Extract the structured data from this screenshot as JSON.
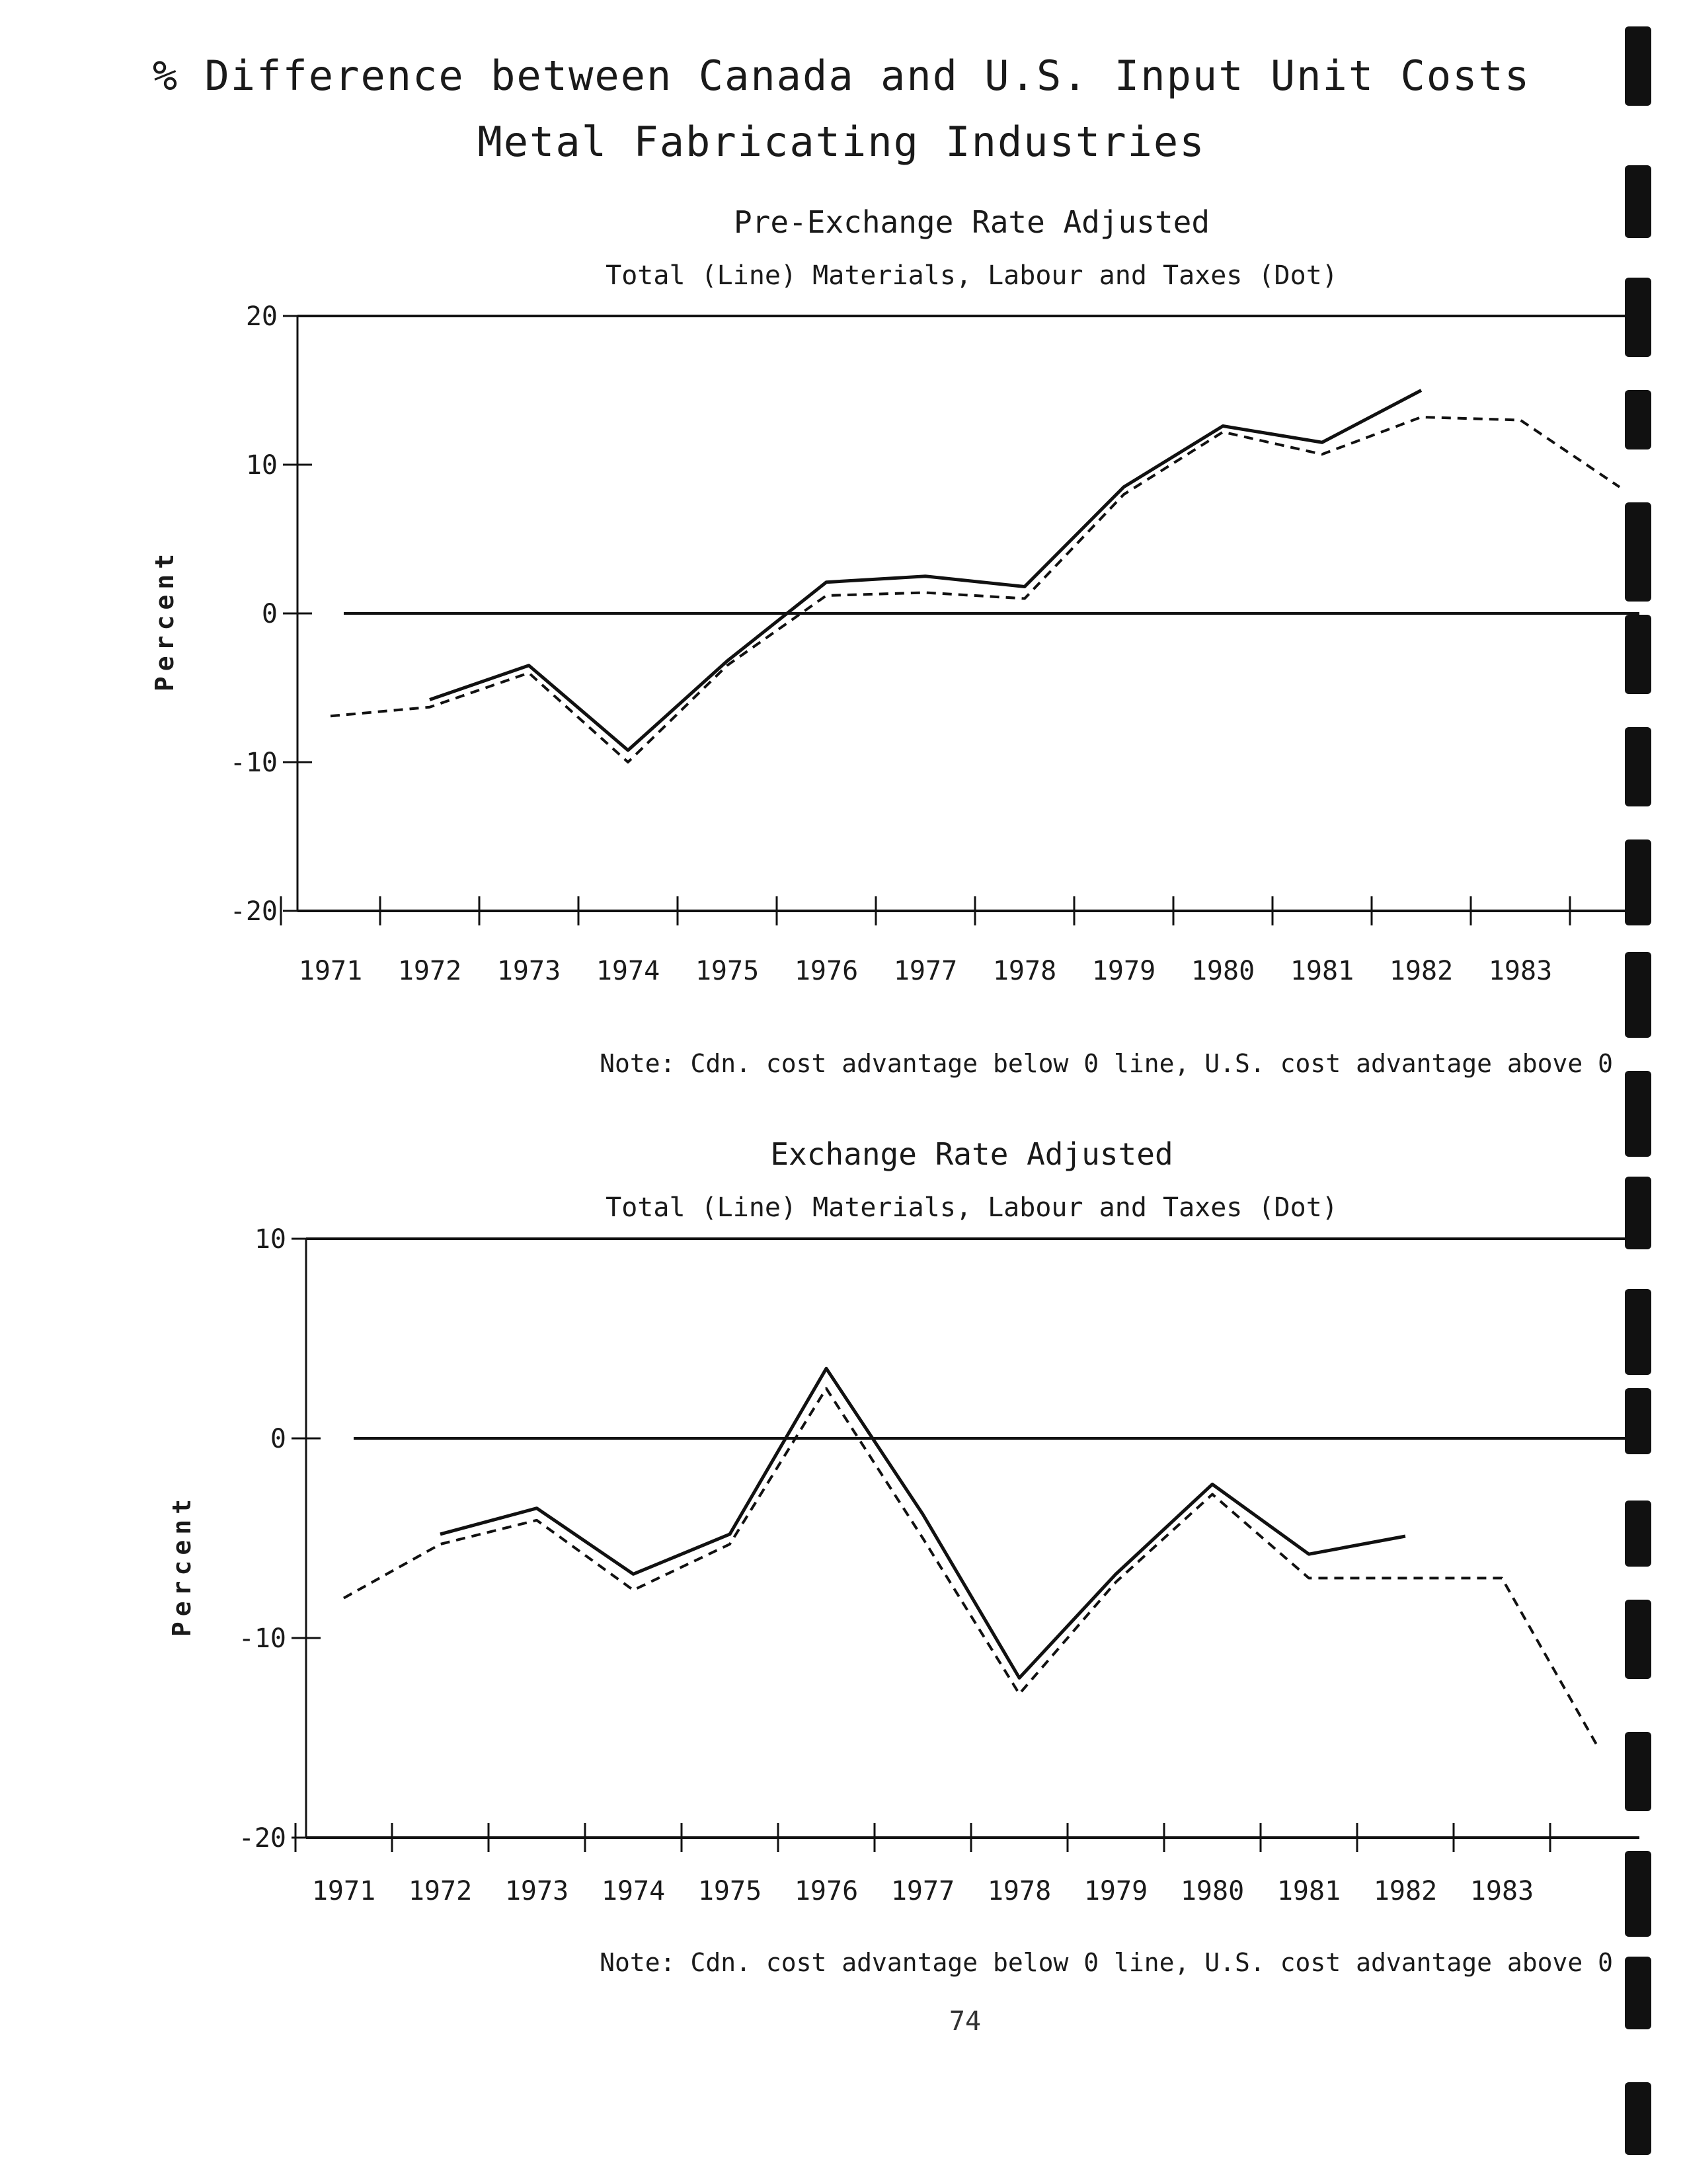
{
  "page": {
    "title_line1": "% Difference between Canada and U.S. Input Unit Costs",
    "title_line2": "Metal Fabricating Industries",
    "page_number": "74",
    "colors": {
      "ink": "#111111",
      "background": "#ffffff"
    }
  },
  "chart_data": [
    {
      "type": "line",
      "title": "Pre-Exchange Rate Adjusted",
      "legend_text": "Total (Line)   Materials, Labour and Taxes (Dot)",
      "ylabel": "Percent",
      "xlabel": "",
      "x": [
        "1971",
        "1972",
        "1973",
        "1974",
        "1975",
        "1976",
        "1977",
        "1978",
        "1979",
        "1980",
        "1981",
        "1982",
        "1983",
        "1984"
      ],
      "x_tick_labels": [
        "1971",
        "1972",
        "1973",
        "1974",
        "1975",
        "1976",
        "1977",
        "1978",
        "1979",
        "1980",
        "1981",
        "1982",
        "1983",
        ""
      ],
      "ylim": [
        -20,
        20
      ],
      "yticks": [
        20,
        10,
        0,
        -10,
        -20
      ],
      "ytick_labels": [
        "20",
        "10",
        "0",
        "-10",
        "-20"
      ],
      "zero_line": true,
      "series": [
        {
          "name": "Total (Line)",
          "style": "solid",
          "x": [
            "1972",
            "1973",
            "1974",
            "1975",
            "1976",
            "1977",
            "1978",
            "1979",
            "1980",
            "1981",
            "1982"
          ],
          "values": [
            -5.8,
            -3.5,
            -9.2,
            -3.2,
            2.1,
            2.5,
            1.8,
            8.5,
            12.6,
            11.5,
            15.0
          ]
        },
        {
          "name": "Materials, Labour and Taxes (Dot)",
          "style": "dotted",
          "x": [
            "1971",
            "1972",
            "1973",
            "1974",
            "1975",
            "1976",
            "1977",
            "1978",
            "1979",
            "1980",
            "1981",
            "1982",
            "1983",
            "1984"
          ],
          "values": [
            -6.9,
            -6.3,
            -4.0,
            -10.0,
            -3.5,
            1.2,
            1.4,
            1.0,
            8.0,
            12.2,
            10.7,
            13.2,
            13.0,
            8.5
          ]
        }
      ],
      "note": "Note: Cdn. cost advantage below 0 line, U.S. cost advantage above 0"
    },
    {
      "type": "line",
      "title": "Exchange Rate Adjusted",
      "legend_text": "Total (Line)   Materials, Labour and Taxes (Dot)",
      "ylabel": "Percent",
      "xlabel": "",
      "x": [
        "1971",
        "1972",
        "1973",
        "1974",
        "1975",
        "1976",
        "1977",
        "1978",
        "1979",
        "1980",
        "1981",
        "1982",
        "1983",
        "1984"
      ],
      "x_tick_labels": [
        "1971",
        "1972",
        "1973",
        "1974",
        "1975",
        "1976",
        "1977",
        "1978",
        "1979",
        "1980",
        "1981",
        "1982",
        "1983",
        ""
      ],
      "ylim": [
        -20,
        10
      ],
      "yticks": [
        10,
        0,
        -10,
        -20
      ],
      "ytick_labels": [
        "10",
        "0",
        "-10",
        "-20"
      ],
      "zero_line": true,
      "series": [
        {
          "name": "Total (Line)",
          "style": "solid",
          "x": [
            "1972",
            "1973",
            "1974",
            "1975",
            "1976",
            "1977",
            "1978",
            "1979",
            "1980",
            "1981",
            "1982"
          ],
          "values": [
            -4.8,
            -3.5,
            -6.8,
            -4.8,
            3.5,
            -3.8,
            -12.0,
            -6.8,
            -2.3,
            -5.8,
            -4.9
          ]
        },
        {
          "name": "Materials, Labour and Taxes (Dot)",
          "style": "dotted",
          "x": [
            "1971",
            "1972",
            "1973",
            "1974",
            "1975",
            "1976",
            "1977",
            "1978",
            "1979",
            "1980",
            "1981",
            "1982",
            "1983",
            "1984"
          ],
          "values": [
            -8.0,
            -5.3,
            -4.1,
            -7.6,
            -5.3,
            2.5,
            -5.0,
            -12.8,
            -7.2,
            -2.8,
            -7.0,
            -7.0,
            -7.0,
            -15.5
          ]
        }
      ],
      "note": "Note: Cdn. cost advantage below 0 line, U.S. cost advantage above 0"
    }
  ]
}
